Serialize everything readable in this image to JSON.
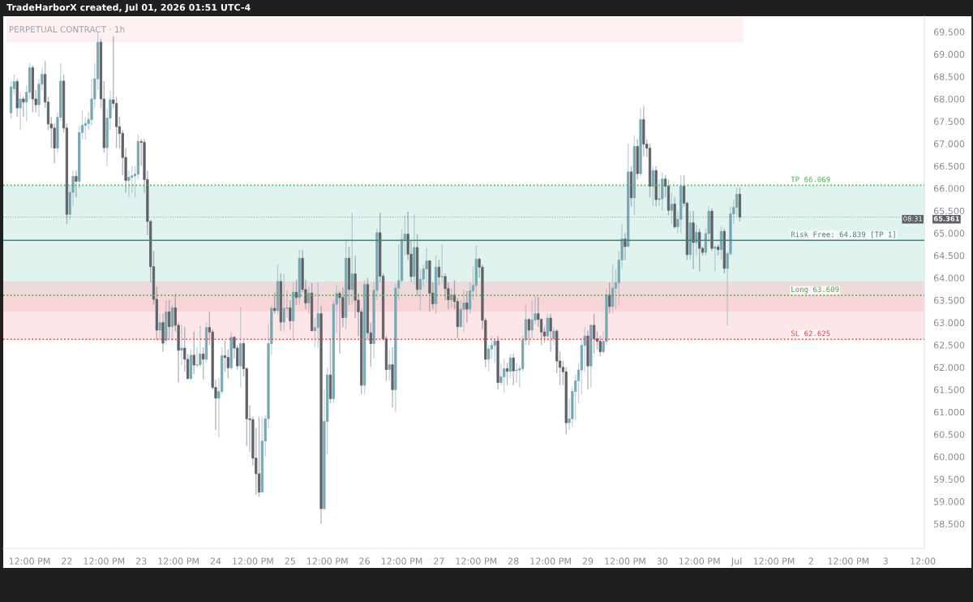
{
  "chart_data": {
    "type": "candlestick",
    "title": "PERPETUAL CONTRACT · 1h",
    "subtitle": "TradeHarborX created, Jul 01, 2026 01:51 UTC-4",
    "x": [
      "2026-06-21T06:00",
      "2026-06-21T07:00",
      "2026-06-21T08:00",
      "2026-06-21T09:00",
      "2026-06-21T10:00",
      "2026-06-21T11:00",
      "2026-06-21T12:00",
      "2026-06-21T13:00",
      "2026-06-21T14:00",
      "2026-06-21T15:00",
      "2026-06-21T16:00",
      "2026-06-21T17:00",
      "2026-06-21T18:00",
      "2026-06-21T19:00",
      "2026-06-21T20:00",
      "2026-06-21T21:00",
      "2026-06-21T22:00",
      "2026-06-21T23:00",
      "2026-06-22T00:00",
      "2026-06-22T01:00",
      "2026-06-22T02:00",
      "2026-06-22T03:00",
      "2026-06-22T04:00",
      "2026-06-22T05:00",
      "2026-06-22T06:00",
      "2026-06-22T07:00",
      "2026-06-22T08:00",
      "2026-06-22T09:00",
      "2026-06-22T10:00",
      "2026-06-22T11:00",
      "2026-06-22T12:00",
      "2026-06-22T13:00",
      "2026-06-22T14:00",
      "2026-06-22T15:00",
      "2026-06-22T16:00",
      "2026-06-22T17:00",
      "2026-06-22T18:00",
      "2026-06-22T19:00",
      "2026-06-22T20:00",
      "2026-06-22T21:00",
      "2026-06-22T22:00",
      "2026-06-22T23:00",
      "2026-06-23T00:00",
      "2026-06-23T01:00",
      "2026-06-23T02:00",
      "2026-06-23T03:00",
      "2026-06-23T04:00",
      "2026-06-23T05:00",
      "2026-06-23T06:00",
      "2026-06-23T07:00",
      "2026-06-23T08:00",
      "2026-06-23T09:00",
      "2026-06-23T10:00",
      "2026-06-23T11:00",
      "2026-06-23T12:00",
      "2026-06-23T13:00",
      "2026-06-23T14:00",
      "2026-06-23T15:00",
      "2026-06-23T16:00",
      "2026-06-23T17:00",
      "2026-06-23T18:00",
      "2026-06-23T19:00",
      "2026-06-23T20:00",
      "2026-06-23T21:00",
      "2026-06-23T22:00",
      "2026-06-23T23:00",
      "2026-06-24T00:00",
      "2026-06-24T01:00",
      "2026-06-24T02:00",
      "2026-06-24T03:00",
      "2026-06-24T04:00",
      "2026-06-24T05:00",
      "2026-06-24T06:00",
      "2026-06-24T07:00",
      "2026-06-24T08:00",
      "2026-06-24T09:00",
      "2026-06-24T10:00",
      "2026-06-24T11:00",
      "2026-06-24T12:00",
      "2026-06-24T13:00",
      "2026-06-24T14:00",
      "2026-06-24T15:00",
      "2026-06-24T16:00",
      "2026-06-24T17:00",
      "2026-06-24T18:00",
      "2026-06-24T19:00",
      "2026-06-24T20:00",
      "2026-06-24T21:00",
      "2026-06-24T22:00",
      "2026-06-24T23:00",
      "2026-06-25T00:00",
      "2026-06-25T01:00",
      "2026-06-25T02:00",
      "2026-06-25T03:00",
      "2026-06-25T04:00",
      "2026-06-25T05:00",
      "2026-06-25T06:00",
      "2026-06-25T07:00",
      "2026-06-25T08:00",
      "2026-06-25T09:00",
      "2026-06-25T10:00",
      "2026-06-25T11:00",
      "2026-06-25T12:00",
      "2026-06-25T13:00",
      "2026-06-25T14:00",
      "2026-06-25T15:00",
      "2026-06-25T16:00",
      "2026-06-25T17:00",
      "2026-06-25T18:00",
      "2026-06-25T19:00",
      "2026-06-25T20:00",
      "2026-06-25T21:00",
      "2026-06-25T22:00",
      "2026-06-25T23:00",
      "2026-06-26T00:00",
      "2026-06-26T01:00",
      "2026-06-26T02:00",
      "2026-06-26T03:00",
      "2026-06-26T04:00",
      "2026-06-26T05:00",
      "2026-06-26T06:00",
      "2026-06-26T07:00",
      "2026-06-26T08:00",
      "2026-06-26T09:00",
      "2026-06-26T10:00",
      "2026-06-26T11:00",
      "2026-06-26T12:00",
      "2026-06-26T13:00",
      "2026-06-26T14:00",
      "2026-06-26T15:00",
      "2026-06-26T16:00",
      "2026-06-26T17:00",
      "2026-06-26T18:00",
      "2026-06-26T19:00",
      "2026-06-26T20:00",
      "2026-06-26T21:00",
      "2026-06-26T22:00",
      "2026-06-26T23:00",
      "2026-06-27T00:00",
      "2026-06-27T01:00",
      "2026-06-27T02:00",
      "2026-06-27T03:00",
      "2026-06-27T04:00",
      "2026-06-27T05:00",
      "2026-06-27T06:00",
      "2026-06-27T07:00",
      "2026-06-27T08:00",
      "2026-06-27T09:00",
      "2026-06-27T10:00",
      "2026-06-27T11:00",
      "2026-06-27T12:00",
      "2026-06-27T13:00",
      "2026-06-27T14:00",
      "2026-06-27T15:00",
      "2026-06-27T16:00",
      "2026-06-27T17:00",
      "2026-06-27T18:00",
      "2026-06-27T19:00",
      "2026-06-27T20:00",
      "2026-06-27T21:00",
      "2026-06-27T22:00",
      "2026-06-27T23:00",
      "2026-06-28T00:00",
      "2026-06-28T01:00",
      "2026-06-28T02:00",
      "2026-06-28T03:00",
      "2026-06-28T04:00",
      "2026-06-28T05:00",
      "2026-06-28T06:00",
      "2026-06-28T07:00",
      "2026-06-28T08:00",
      "2026-06-28T09:00",
      "2026-06-28T10:00",
      "2026-06-28T11:00",
      "2026-06-28T12:00",
      "2026-06-28T13:00",
      "2026-06-28T14:00",
      "2026-06-28T15:00",
      "2026-06-28T16:00",
      "2026-06-28T17:00",
      "2026-06-28T18:00",
      "2026-06-28T19:00",
      "2026-06-28T20:00",
      "2026-06-28T21:00",
      "2026-06-28T22:00",
      "2026-06-28T23:00",
      "2026-06-29T00:00",
      "2026-06-29T01:00",
      "2026-06-29T02:00",
      "2026-06-29T03:00",
      "2026-06-29T04:00",
      "2026-06-29T05:00",
      "2026-06-29T06:00",
      "2026-06-29T07:00",
      "2026-06-29T08:00",
      "2026-06-29T09:00",
      "2026-06-29T10:00",
      "2026-06-29T11:00",
      "2026-06-29T12:00",
      "2026-06-29T13:00",
      "2026-06-29T14:00",
      "2026-06-29T15:00",
      "2026-06-29T16:00",
      "2026-06-29T17:00",
      "2026-06-29T18:00",
      "2026-06-29T19:00",
      "2026-06-29T20:00",
      "2026-06-29T21:00",
      "2026-06-29T22:00",
      "2026-06-29T23:00",
      "2026-06-30T00:00",
      "2026-06-30T01:00",
      "2026-06-30T02:00",
      "2026-06-30T03:00",
      "2026-06-30T04:00",
      "2026-06-30T05:00",
      "2026-06-30T06:00",
      "2026-06-30T07:00",
      "2026-06-30T08:00",
      "2026-06-30T09:00",
      "2026-06-30T10:00",
      "2026-06-30T11:00",
      "2026-06-30T12:00",
      "2026-06-30T13:00",
      "2026-06-30T14:00",
      "2026-06-30T15:00",
      "2026-06-30T16:00",
      "2026-06-30T17:00",
      "2026-06-30T18:00",
      "2026-06-30T19:00",
      "2026-06-30T20:00",
      "2026-06-30T21:00",
      "2026-06-30T22:00",
      "2026-06-30T23:00",
      "2026-07-01T00:00",
      "2026-07-01T01:00"
    ],
    "ohlc": [
      [
        67.69,
        68.4,
        67.55,
        68.27
      ],
      [
        68.23,
        68.55,
        68.1,
        68.39
      ],
      [
        68.39,
        68.45,
        67.6,
        67.8
      ],
      [
        67.8,
        68.15,
        67.3,
        68.0
      ],
      [
        68.0,
        68.05,
        67.6,
        67.93
      ],
      [
        67.93,
        68.3,
        67.5,
        68.15
      ],
      [
        68.15,
        68.8,
        68.0,
        68.7
      ],
      [
        68.7,
        68.75,
        67.7,
        68.0
      ],
      [
        68.0,
        68.2,
        67.7,
        67.87
      ],
      [
        67.87,
        68.45,
        67.6,
        68.33
      ],
      [
        68.33,
        68.7,
        68.2,
        68.55
      ],
      [
        68.55,
        68.85,
        67.8,
        67.93
      ],
      [
        67.93,
        68.05,
        67.3,
        67.44
      ],
      [
        67.44,
        67.6,
        66.9,
        67.35
      ],
      [
        67.35,
        67.45,
        66.56,
        66.9
      ],
      [
        66.9,
        67.7,
        66.8,
        67.59
      ],
      [
        67.59,
        68.8,
        67.5,
        68.4
      ],
      [
        68.4,
        68.55,
        67.25,
        67.35
      ],
      [
        67.35,
        67.45,
        65.2,
        65.42
      ],
      [
        65.42,
        66.1,
        65.3,
        65.91
      ],
      [
        65.91,
        66.4,
        65.6,
        66.27
      ],
      [
        66.27,
        66.4,
        65.8,
        66.16
      ],
      [
        66.16,
        67.4,
        66.0,
        67.25
      ],
      [
        67.25,
        67.75,
        67.1,
        67.41
      ],
      [
        67.41,
        67.6,
        67.1,
        67.45
      ],
      [
        67.45,
        67.7,
        67.3,
        67.54
      ],
      [
        67.54,
        68.45,
        67.4,
        68.0
      ],
      [
        68.0,
        68.8,
        67.8,
        68.45
      ],
      [
        68.45,
        69.5,
        68.2,
        69.27
      ],
      [
        69.27,
        69.35,
        67.8,
        68.0
      ],
      [
        68.0,
        68.4,
        66.8,
        66.91
      ],
      [
        66.91,
        67.8,
        66.5,
        67.57
      ],
      [
        67.57,
        68.2,
        67.3,
        67.98
      ],
      [
        67.98,
        69.4,
        67.8,
        67.9
      ],
      [
        67.9,
        68.05,
        66.9,
        67.38
      ],
      [
        67.38,
        67.6,
        66.9,
        67.23
      ],
      [
        67.23,
        67.3,
        66.3,
        66.69
      ],
      [
        66.69,
        66.9,
        65.9,
        66.18
      ],
      [
        66.18,
        66.4,
        65.8,
        66.25
      ],
      [
        66.25,
        66.5,
        65.9,
        66.28
      ],
      [
        66.28,
        66.5,
        65.8,
        66.32
      ],
      [
        66.32,
        67.2,
        66.2,
        67.05
      ],
      [
        67.05,
        67.1,
        66.5,
        67.03
      ],
      [
        67.03,
        67.1,
        65.9,
        66.2
      ],
      [
        66.2,
        66.4,
        64.95,
        65.26
      ],
      [
        65.26,
        65.3,
        63.9,
        64.25
      ],
      [
        64.25,
        64.6,
        63.4,
        63.52
      ],
      [
        63.52,
        63.8,
        62.6,
        62.83
      ],
      [
        62.83,
        63.2,
        62.6,
        63.0
      ],
      [
        63.0,
        63.2,
        62.35,
        62.54
      ],
      [
        62.6,
        63.5,
        62.5,
        63.24
      ],
      [
        63.24,
        63.5,
        62.65,
        62.91
      ],
      [
        62.91,
        63.4,
        62.6,
        63.33
      ],
      [
        63.33,
        63.65,
        62.8,
        62.94
      ],
      [
        62.94,
        63.0,
        61.66,
        62.38
      ],
      [
        62.38,
        62.95,
        62.05,
        62.43
      ],
      [
        62.43,
        62.9,
        61.9,
        62.18
      ],
      [
        62.18,
        62.3,
        61.73,
        61.75
      ],
      [
        61.75,
        62.4,
        61.7,
        62.27
      ],
      [
        62.27,
        62.8,
        61.85,
        62.05
      ],
      [
        62.05,
        62.45,
        62.0,
        62.06
      ],
      [
        62.06,
        62.94,
        62.0,
        62.3
      ],
      [
        62.3,
        62.45,
        61.73,
        62.18
      ],
      [
        62.18,
        63.0,
        62.1,
        62.89
      ],
      [
        62.89,
        63.24,
        62.5,
        62.79
      ],
      [
        62.79,
        62.85,
        61.5,
        61.55
      ],
      [
        61.55,
        61.72,
        60.6,
        61.31
      ],
      [
        61.31,
        61.76,
        60.43,
        61.46
      ],
      [
        61.46,
        62.45,
        61.4,
        62.26
      ],
      [
        62.26,
        62.6,
        61.9,
        62.22
      ],
      [
        62.22,
        62.4,
        61.75,
        61.99
      ],
      [
        61.99,
        62.8,
        61.95,
        62.67
      ],
      [
        62.67,
        62.7,
        62.2,
        62.43
      ],
      [
        62.43,
        62.5,
        61.95,
        62.03
      ],
      [
        62.03,
        63.35,
        61.55,
        62.53
      ],
      [
        62.53,
        62.6,
        61.8,
        61.97
      ],
      [
        61.97,
        62.0,
        60.24,
        60.85
      ],
      [
        60.85,
        61.15,
        60.1,
        60.83
      ],
      [
        60.83,
        60.9,
        59.8,
        59.97
      ],
      [
        59.97,
        60.65,
        59.15,
        59.62
      ],
      [
        59.62,
        60.9,
        59.1,
        59.21
      ],
      [
        59.21,
        60.9,
        59.2,
        60.35
      ],
      [
        60.35,
        60.93,
        60.0,
        60.85
      ],
      [
        60.85,
        62.97,
        60.63,
        62.53
      ],
      [
        62.53,
        63.4,
        62.27,
        63.32
      ],
      [
        63.32,
        63.67,
        63.2,
        63.27
      ],
      [
        63.27,
        64.3,
        63.18,
        63.92
      ],
      [
        63.92,
        64.1,
        62.82,
        63.01
      ],
      [
        63.01,
        64.1,
        62.8,
        63.32
      ],
      [
        63.32,
        63.72,
        63.1,
        63.33
      ],
      [
        63.33,
        63.5,
        62.85,
        63.04
      ],
      [
        63.04,
        63.9,
        62.58,
        63.68
      ],
      [
        63.68,
        63.96,
        63.4,
        63.56
      ],
      [
        63.56,
        64.63,
        63.4,
        64.44
      ],
      [
        64.44,
        64.63,
        63.68,
        63.74
      ],
      [
        63.74,
        63.96,
        63.3,
        63.44
      ],
      [
        63.44,
        63.8,
        63.2,
        63.66
      ],
      [
        63.66,
        63.88,
        62.8,
        62.82
      ],
      [
        62.82,
        63.1,
        62.45,
        62.89
      ],
      [
        62.89,
        63.9,
        62.43,
        63.2
      ],
      [
        63.2,
        63.37,
        58.5,
        58.84
      ],
      [
        58.84,
        61.5,
        58.8,
        60.79
      ],
      [
        60.79,
        62.0,
        60.05,
        61.83
      ],
      [
        61.83,
        62.65,
        61.2,
        61.3
      ],
      [
        61.3,
        63.5,
        61.2,
        63.41
      ],
      [
        63.41,
        63.84,
        62.78,
        63.65
      ],
      [
        63.65,
        63.7,
        62.3,
        63.56
      ],
      [
        63.56,
        63.78,
        62.9,
        63.11
      ],
      [
        63.11,
        64.86,
        62.85,
        64.44
      ],
      [
        64.44,
        64.7,
        63.4,
        63.74
      ],
      [
        63.74,
        65.46,
        63.4,
        64.09
      ],
      [
        64.09,
        64.5,
        63.1,
        63.5
      ],
      [
        63.5,
        63.65,
        62.7,
        63.24
      ],
      [
        63.24,
        63.3,
        61.4,
        61.6
      ],
      [
        61.6,
        63.95,
        61.4,
        63.85
      ],
      [
        63.85,
        64.0,
        62.6,
        62.77
      ],
      [
        62.77,
        63.0,
        62.01,
        62.53
      ],
      [
        62.53,
        63.92,
        62.2,
        63.72
      ],
      [
        63.72,
        65.1,
        63.5,
        65.01
      ],
      [
        65.01,
        65.46,
        63.9,
        64.04
      ],
      [
        64.04,
        64.1,
        62.6,
        62.64
      ],
      [
        62.64,
        62.7,
        61.7,
        61.95
      ],
      [
        61.95,
        62.4,
        61.7,
        62.06
      ],
      [
        62.06,
        62.45,
        61.1,
        61.5
      ],
      [
        61.5,
        63.87,
        61.0,
        63.77
      ],
      [
        63.77,
        64.75,
        63.5,
        63.94
      ],
      [
        63.94,
        65.08,
        63.9,
        64.86
      ],
      [
        64.86,
        65.4,
        64.5,
        64.98
      ],
      [
        64.98,
        65.48,
        64.4,
        64.53
      ],
      [
        64.53,
        64.83,
        63.9,
        64.03
      ],
      [
        64.03,
        65.42,
        63.85,
        64.68
      ],
      [
        64.68,
        64.97,
        63.6,
        63.74
      ],
      [
        63.74,
        64.2,
        63.28,
        63.97
      ],
      [
        63.97,
        64.3,
        63.8,
        64.2
      ],
      [
        64.2,
        64.67,
        63.9,
        64.38
      ],
      [
        64.38,
        64.4,
        63.25,
        63.66
      ],
      [
        63.66,
        63.9,
        63.3,
        63.42
      ],
      [
        63.42,
        64.5,
        63.2,
        64.24
      ],
      [
        64.24,
        64.4,
        63.84,
        64.02
      ],
      [
        64.02,
        64.75,
        63.9,
        64.03
      ],
      [
        64.03,
        64.1,
        63.5,
        63.76
      ],
      [
        63.76,
        63.9,
        63.3,
        63.51
      ],
      [
        63.51,
        63.75,
        63.33,
        63.62
      ],
      [
        63.62,
        63.95,
        63.3,
        63.47
      ],
      [
        63.47,
        63.55,
        62.65,
        62.91
      ],
      [
        62.91,
        63.5,
        62.9,
        63.3
      ],
      [
        63.3,
        63.73,
        62.8,
        63.44
      ],
      [
        63.44,
        63.7,
        63.0,
        63.3
      ],
      [
        63.3,
        63.9,
        63.2,
        63.71
      ],
      [
        63.71,
        64.25,
        63.5,
        63.83
      ],
      [
        63.83,
        64.72,
        63.6,
        64.42
      ],
      [
        64.42,
        64.45,
        64.0,
        64.24
      ],
      [
        64.24,
        64.3,
        62.85,
        63.05
      ],
      [
        63.05,
        63.1,
        62.0,
        62.18
      ],
      [
        62.18,
        62.5,
        61.9,
        62.41
      ],
      [
        62.41,
        62.7,
        62.2,
        62.49
      ],
      [
        62.49,
        62.65,
        62.1,
        62.59
      ],
      [
        62.59,
        62.7,
        61.5,
        61.66
      ],
      [
        61.66,
        62.1,
        61.6,
        61.79
      ],
      [
        61.79,
        62.2,
        61.43,
        61.97
      ],
      [
        61.97,
        62.1,
        61.6,
        61.91
      ],
      [
        61.91,
        62.3,
        61.75,
        62.21
      ],
      [
        62.21,
        62.3,
        61.6,
        61.92
      ],
      [
        61.93,
        62.1,
        61.65,
        61.94
      ],
      [
        61.94,
        62.05,
        61.55,
        61.97
      ],
      [
        61.97,
        62.7,
        61.9,
        62.61
      ],
      [
        62.61,
        63.4,
        62.5,
        63.07
      ],
      [
        63.07,
        63.1,
        62.5,
        62.83
      ],
      [
        62.83,
        63.5,
        62.65,
        63.06
      ],
      [
        63.06,
        63.6,
        62.95,
        63.2
      ],
      [
        63.2,
        63.57,
        62.9,
        63.07
      ],
      [
        63.07,
        63.1,
        62.5,
        62.79
      ],
      [
        62.79,
        62.9,
        62.55,
        62.7
      ],
      [
        62.7,
        63.2,
        62.6,
        63.1
      ],
      [
        63.1,
        63.2,
        62.35,
        62.81
      ],
      [
        62.64,
        62.9,
        62.5,
        62.81
      ],
      [
        62.81,
        62.85,
        61.87,
        62.14
      ],
      [
        62.14,
        62.35,
        61.6,
        62.0
      ],
      [
        62.0,
        62.15,
        61.6,
        61.9
      ],
      [
        61.9,
        62.0,
        60.5,
        60.76
      ],
      [
        60.76,
        61.3,
        60.6,
        60.85
      ],
      [
        60.85,
        61.55,
        60.66,
        61.46
      ],
      [
        61.46,
        61.85,
        60.82,
        61.7
      ],
      [
        61.7,
        62.1,
        61.2,
        61.94
      ],
      [
        61.94,
        62.65,
        61.4,
        62.49
      ],
      [
        62.49,
        62.9,
        61.9,
        62.7
      ],
      [
        62.7,
        62.82,
        61.5,
        62.03
      ],
      [
        62.03,
        62.95,
        61.54,
        62.94
      ],
      [
        62.94,
        63.2,
        62.3,
        62.64
      ],
      [
        62.64,
        62.8,
        62.4,
        62.58
      ],
      [
        62.58,
        62.7,
        62.25,
        62.35
      ],
      [
        62.35,
        62.8,
        62.3,
        62.58
      ],
      [
        62.58,
        63.75,
        62.5,
        63.62
      ],
      [
        63.62,
        63.9,
        63.2,
        63.36
      ],
      [
        63.36,
        64.3,
        63.2,
        63.77
      ],
      [
        63.77,
        64.2,
        63.3,
        63.89
      ],
      [
        63.89,
        64.6,
        63.4,
        64.4
      ],
      [
        64.4,
        65.2,
        64.2,
        64.87
      ],
      [
        64.87,
        65.0,
        64.4,
        64.7
      ],
      [
        64.7,
        67.0,
        64.7,
        66.37
      ],
      [
        66.37,
        66.5,
        65.6,
        65.79
      ],
      [
        65.79,
        67.18,
        65.4,
        66.94
      ],
      [
        66.94,
        67.1,
        66.2,
        66.33
      ],
      [
        66.33,
        67.79,
        66.28,
        67.54
      ],
      [
        67.54,
        67.84,
        66.72,
        66.99
      ],
      [
        66.99,
        67.1,
        66.7,
        66.9
      ],
      [
        66.9,
        67.0,
        65.8,
        66.05
      ],
      [
        66.05,
        66.5,
        65.6,
        66.4
      ],
      [
        66.4,
        66.5,
        65.6,
        65.75
      ],
      [
        65.75,
        66.2,
        65.6,
        65.77
      ],
      [
        65.77,
        66.36,
        65.5,
        66.21
      ],
      [
        66.21,
        66.3,
        65.8,
        66.05
      ],
      [
        66.05,
        66.2,
        65.4,
        65.51
      ],
      [
        65.51,
        65.9,
        65.2,
        65.65
      ],
      [
        65.65,
        65.8,
        65.1,
        65.14
      ],
      [
        65.14,
        65.5,
        65.0,
        65.31
      ],
      [
        65.31,
        66.3,
        65.0,
        66.05
      ],
      [
        66.05,
        66.3,
        65.6,
        65.67
      ],
      [
        65.67,
        65.7,
        64.4,
        64.52
      ],
      [
        64.52,
        65.5,
        64.4,
        65.23
      ],
      [
        65.23,
        65.5,
        64.2,
        64.79
      ],
      [
        64.79,
        65.2,
        64.5,
        65.02
      ],
      [
        65.02,
        65.1,
        64.15,
        64.66
      ],
      [
        64.66,
        64.7,
        64.5,
        64.57
      ],
      [
        64.57,
        65.1,
        64.5,
        64.99
      ],
      [
        64.99,
        65.6,
        64.8,
        65.49
      ],
      [
        65.49,
        65.55,
        64.6,
        64.66
      ],
      [
        64.66,
        64.73,
        64.15,
        64.69
      ],
      [
        64.69,
        64.75,
        64.5,
        64.63
      ],
      [
        64.63,
        65.15,
        64.4,
        65.04
      ],
      [
        65.04,
        65.1,
        64.1,
        64.21
      ],
      [
        64.21,
        64.6,
        62.94,
        64.54
      ],
      [
        64.54,
        65.6,
        64.5,
        65.43
      ],
      [
        65.43,
        65.75,
        65.2,
        65.58
      ],
      [
        65.58,
        66.02,
        65.4,
        65.87
      ],
      [
        65.87,
        66.02,
        65.26,
        65.361
      ]
    ],
    "xlim": [
      "2026-06-21T03:30",
      "2026-07-03T12:30"
    ],
    "xticks": [
      {
        "value": "2026-06-21T12:00",
        "label": "12:00 PM"
      },
      {
        "value": "2026-06-22T00:00",
        "label": "22"
      },
      {
        "value": "2026-06-22T12:00",
        "label": "12:00 PM"
      },
      {
        "value": "2026-06-23T00:00",
        "label": "23"
      },
      {
        "value": "2026-06-23T12:00",
        "label": "12:00 PM"
      },
      {
        "value": "2026-06-24T00:00",
        "label": "24"
      },
      {
        "value": "2026-06-24T12:00",
        "label": "12:00 PM"
      },
      {
        "value": "2026-06-25T00:00",
        "label": "25"
      },
      {
        "value": "2026-06-25T12:00",
        "label": "12:00 PM"
      },
      {
        "value": "2026-06-26T00:00",
        "label": "26"
      },
      {
        "value": "2026-06-26T12:00",
        "label": "12:00 PM"
      },
      {
        "value": "2026-06-27T00:00",
        "label": "27"
      },
      {
        "value": "2026-06-27T12:00",
        "label": "12:00 PM"
      },
      {
        "value": "2026-06-28T00:00",
        "label": "28"
      },
      {
        "value": "2026-06-28T12:00",
        "label": "12:00 PM"
      },
      {
        "value": "2026-06-29T00:00",
        "label": "29"
      },
      {
        "value": "2026-06-29T12:00",
        "label": "12:00 PM"
      },
      {
        "value": "2026-06-30T00:00",
        "label": "30"
      },
      {
        "value": "2026-06-30T12:00",
        "label": "12:00 PM"
      },
      {
        "value": "2026-07-01T00:00",
        "label": "Jul"
      },
      {
        "value": "2026-07-01T12:00",
        "label": "12:00 PM"
      },
      {
        "value": "2026-07-02T00:00",
        "label": "2"
      },
      {
        "value": "2026-07-02T12:00",
        "label": "12:00 PM"
      },
      {
        "value": "2026-07-03T00:00",
        "label": "3"
      },
      {
        "value": "2026-07-03T12:00",
        "label": "12:00"
      }
    ],
    "ylim": [
      57.95,
      69.85
    ],
    "yticks": [
      {
        "value": 58.5,
        "label": "58.500"
      },
      {
        "value": 59.0,
        "label": "59.000"
      },
      {
        "value": 59.5,
        "label": "59.500"
      },
      {
        "value": 60.0,
        "label": "60.000"
      },
      {
        "value": 60.5,
        "label": "60.500"
      },
      {
        "value": 61.0,
        "label": "61.000"
      },
      {
        "value": 61.5,
        "label": "61.500"
      },
      {
        "value": 62.0,
        "label": "62.000"
      },
      {
        "value": 62.5,
        "label": "62.500"
      },
      {
        "value": 63.0,
        "label": "63.000"
      },
      {
        "value": 63.5,
        "label": "63.500"
      },
      {
        "value": 64.0,
        "label": "64.000"
      },
      {
        "value": 64.5,
        "label": "64.500"
      },
      {
        "value": 65.0,
        "label": "65.000"
      },
      {
        "value": 65.5,
        "label": "65.500"
      },
      {
        "value": 66.0,
        "label": "66.000"
      },
      {
        "value": 66.5,
        "label": "66.500"
      },
      {
        "value": 67.0,
        "label": "67.000"
      },
      {
        "value": 67.5,
        "label": "67.500"
      },
      {
        "value": 68.0,
        "label": "68.000"
      },
      {
        "value": 68.5,
        "label": "68.500"
      },
      {
        "value": 69.0,
        "label": "69.000"
      },
      {
        "value": 69.5,
        "label": "69.500"
      }
    ],
    "bands": [
      {
        "axis": "y",
        "from": 63.609,
        "to": 66.069,
        "color": "#cdebe3"
      },
      {
        "axis": "y",
        "from": 62.625,
        "to": 63.609,
        "color": "#fcd6d7"
      },
      {
        "axis": "y",
        "from": 63.25,
        "to": 63.92,
        "color": "#f8c9ce"
      }
    ],
    "ref_lines": [
      {
        "axis": "y",
        "value": 64.839,
        "label": "Risk Free: 64.839 [TP 1]",
        "color": "#4e7f7a",
        "line_style": "solid"
      },
      {
        "axis": "y",
        "value": 66.069,
        "label": "TP 66.069",
        "color": "#4caf50",
        "line_style": "dotted"
      },
      {
        "axis": "y",
        "value": 63.609,
        "label": "Long 63.609",
        "color": "#4caf50",
        "line_style": "dotted"
      },
      {
        "axis": "y",
        "value": 62.625,
        "label": "SL 62.625",
        "color": "#f23645",
        "line_style": "dotted"
      },
      {
        "axis": "y",
        "value": 65.361,
        "label": "65.361",
        "color": "#5d6066",
        "line_style": "dotted"
      }
    ],
    "annotations": [
      "08:31"
    ]
  }
}
